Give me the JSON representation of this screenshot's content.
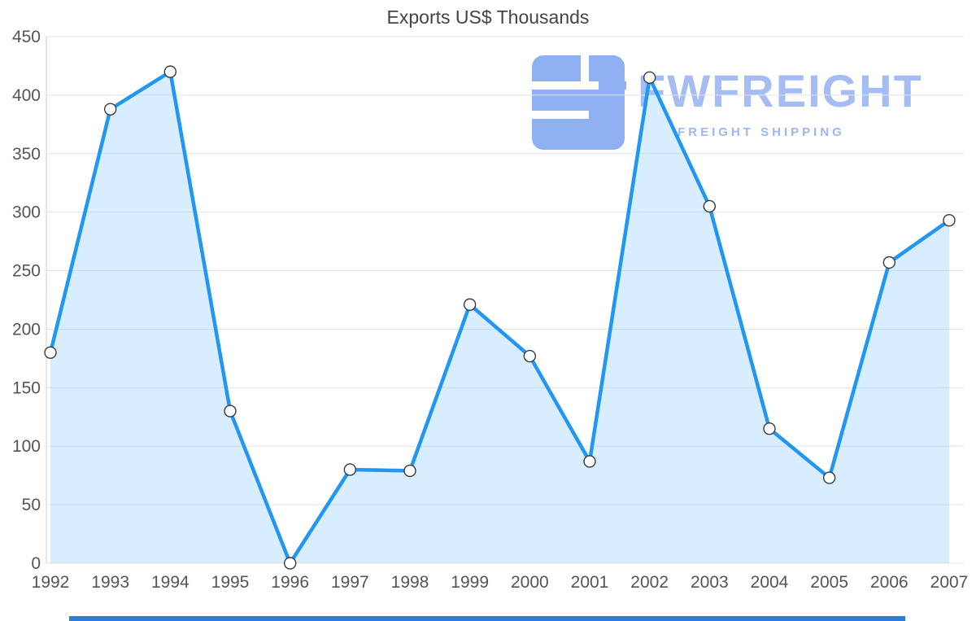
{
  "title": "Exports US$ Thousands",
  "watermark": {
    "brand": "FWFREIGHT",
    "tagline": "FREIGHT SHIPPING",
    "brand_color": "#a6bdf3",
    "icon_color": "#8fb0f2"
  },
  "chart_data": {
    "type": "area",
    "title": "Exports US$ Thousands",
    "x": [
      1992,
      1993,
      1994,
      1995,
      1996,
      1997,
      1998,
      1999,
      2000,
      2001,
      2002,
      2003,
      2004,
      2005,
      2006,
      2007
    ],
    "values": [
      180,
      388,
      420,
      130,
      0,
      80,
      79,
      221,
      177,
      87,
      415,
      305,
      115,
      73,
      257,
      293
    ],
    "xlabel": "",
    "ylabel": "",
    "ylim": [
      0,
      450
    ],
    "ytick_step": 50,
    "yticks": [
      0,
      50,
      100,
      150,
      200,
      250,
      300,
      350,
      400,
      450
    ],
    "grid": true,
    "legend_position": "none",
    "line_color": "#2196f3",
    "fill_color": "rgba(144, 202, 249, 0.35)",
    "grid_color": "#e3e3e3",
    "axis_line_color": "#cccccc",
    "marker_fill": "#ffffff",
    "marker_stroke": "#3a3a3a"
  },
  "footer_bar_color": "#2e7cd6"
}
